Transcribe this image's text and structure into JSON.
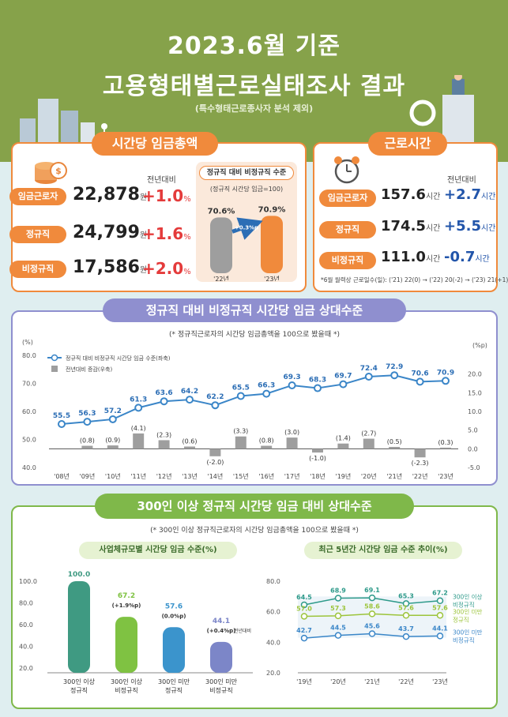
{
  "title_line1": "2023.6월 기준",
  "title_line2": "고용형태별근로실태조사 결과",
  "title_note": "(특수형태근로종사자 분석 제외)",
  "wage_card": {
    "title": "시간당 임금총액",
    "yoy_header": "전년대비",
    "rows": [
      {
        "label": "임금근로자",
        "value": "22,878",
        "unit": "원",
        "change": "+1.0",
        "pct": "%"
      },
      {
        "label": "정규직",
        "value": "24,799",
        "unit": "원",
        "change": "+1.6",
        "pct": "%"
      },
      {
        "label": "비정규직",
        "value": "17,586",
        "unit": "원",
        "change": "+2.0",
        "pct": "%"
      }
    ],
    "ratio_title": "정규직 대비 비정규직 수준",
    "ratio_sub": "(정규직 시간당 임금=100)",
    "ratio_bars": [
      {
        "year": "'22년",
        "value": 70.6,
        "value_label": "70.6",
        "unit": "%"
      },
      {
        "year": "'23년",
        "value": 70.9,
        "value_label": "70.9",
        "unit": "%"
      }
    ],
    "ratio_diff": "+0.3",
    "ratio_diff_unit": "%p"
  },
  "hours_card": {
    "title": "근로시간",
    "yoy_header": "전년대비",
    "rows": [
      {
        "label": "임금근로자",
        "value": "157.6",
        "unit": "시간",
        "change": "+2.7",
        "cunit": "시간"
      },
      {
        "label": "정규직",
        "value": "174.5",
        "unit": "시간",
        "change": "+5.5",
        "cunit": "시간"
      },
      {
        "label": "비정규직",
        "value": "111.0",
        "unit": "시간",
        "change": "-0.7",
        "cunit": "시간"
      }
    ],
    "footnote": "*6월 월력상 근로일수(일): ('21) 22(0) → ('22) 20(-2) → ('23) 21(+1)"
  },
  "chart_data": [
    {
      "type": "line",
      "title": "정규직 대비 비정규직 시간당 임금 상대수준",
      "subtitle": "(* 정규직근로자의 시간당 임금총액을 100으로 봤을때 *)",
      "left_unit": "(%)",
      "right_unit": "(%p)",
      "categories": [
        "'08년",
        "'09년",
        "'10년",
        "'11년",
        "'12년",
        "'13년",
        "'14년",
        "'15년",
        "'16년",
        "'17년",
        "'18년",
        "'19년",
        "'20년",
        "'21년",
        "'22년",
        "'23년"
      ],
      "series": [
        {
          "name": "정규직 대비 비정규직 시간당 임금 수준(좌축)",
          "type": "line",
          "color": "#3b86c8",
          "values": [
            55.5,
            56.3,
            57.2,
            61.3,
            63.6,
            64.2,
            62.2,
            65.5,
            66.3,
            69.3,
            68.3,
            69.7,
            72.4,
            72.9,
            70.6,
            70.9
          ]
        },
        {
          "name": "전년대비 증감(우축)",
          "type": "bar",
          "color": "#9e9e9e",
          "values": [
            null,
            0.8,
            0.9,
            4.1,
            2.3,
            0.6,
            -2.0,
            3.3,
            0.8,
            3.0,
            -1.0,
            1.4,
            2.7,
            0.5,
            -2.3,
            0.3
          ]
        }
      ],
      "bar_labels": [
        "",
        "(0.8)",
        "(0.9)",
        "(4.1)",
        "(2.3)",
        "(0.6)",
        "(-2.0)",
        "(3.3)",
        "(0.8)",
        "(3.0)",
        "(-1.0)",
        "(1.4)",
        "(2.7)",
        "(0.5)",
        "(-2.3)",
        "(0.3)"
      ],
      "ylim_left": [
        40,
        80
      ],
      "yticks_left": [
        "40.0",
        "50.0",
        "60.0",
        "70.0",
        "80.0"
      ],
      "ylim_right": [
        -5,
        25
      ],
      "yticks_right": [
        "-5.0",
        "0.0",
        "5.0",
        "10.0",
        "15.0",
        "20.0"
      ],
      "legend": "top-left"
    },
    {
      "type": "bar",
      "title": "사업체규모별 시간당 임금 수준(%)",
      "categories": [
        "300인 이상\n정규직",
        "300인 이상\n비정규직",
        "300인 미만\n정규직",
        "300인 미만\n비정규직"
      ],
      "values": [
        100.0,
        67.2,
        57.6,
        44.1
      ],
      "value_labels": [
        "100.0",
        "67.2",
        "57.6",
        "44.1"
      ],
      "change_labels": [
        "",
        "(+1.9%p)",
        "(0.0%p)",
        "(+0.4%p)"
      ],
      "change_note": "전년대비",
      "colors": [
        "#3f9a82",
        "#7fc242",
        "#3b94cc",
        "#7c86c8"
      ],
      "ylim": [
        20,
        100
      ],
      "yticks": [
        "20.0",
        "40.0",
        "60.0",
        "80.0",
        "100.0"
      ]
    },
    {
      "type": "line",
      "title": "최근 5년간 시간당 임금 수준 추이(%)",
      "categories": [
        "'19년",
        "'20년",
        "'21년",
        "'22년",
        "'23년"
      ],
      "series": [
        {
          "name": "300인 이상 비정규직",
          "color": "#2e9a8a",
          "values": [
            64.5,
            68.9,
            69.1,
            65.3,
            67.2
          ]
        },
        {
          "name": "300인 미만 정규직",
          "color": "#9cc43b",
          "values": [
            57.0,
            57.3,
            58.6,
            57.6,
            57.6
          ]
        },
        {
          "name": "300인 미만 비정규직",
          "color": "#3a86c8",
          "values": [
            42.7,
            44.5,
            45.6,
            43.7,
            44.1
          ]
        }
      ],
      "ylim": [
        20,
        80
      ],
      "yticks": [
        "20.0",
        "40.0",
        "60.0",
        "80.0"
      ]
    }
  ],
  "section3_title": "300인 이상 정규직 시간당 임금 대비 상대수준",
  "section3_subtitle": "(* 300인 이상 정규직근로자의 시간당 임금총액을 100으로 봤을때 *)",
  "colors": {
    "green": "#86a24a",
    "orange": "#f08a3c",
    "purple": "#8f8fcf",
    "teal": "#2e9a8a"
  }
}
